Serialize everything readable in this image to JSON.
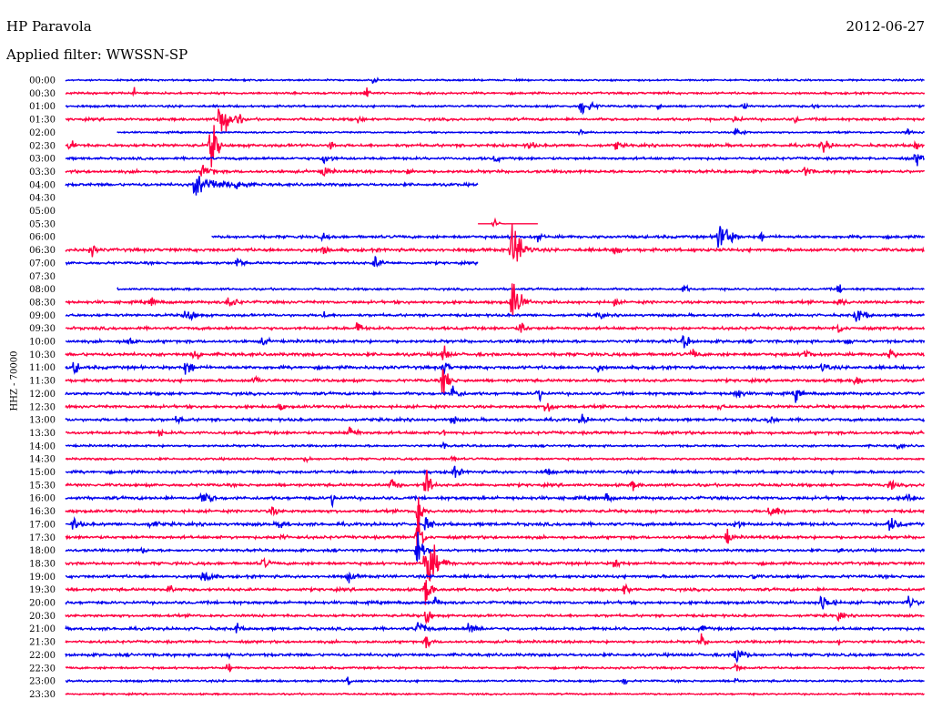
{
  "header": {
    "station": "HP Paravola",
    "date": "2012-06-27",
    "filter_label": "Applied filter: WWSSN-SP",
    "channel_label": "HHZ - 70000"
  },
  "colors": {
    "line_a": "#0000ee",
    "line_b": "#ff0040"
  },
  "chart_data": {
    "type": "line",
    "title": "HP Paravola",
    "subtitle": "Applied filter: WWSSN-SP",
    "ylabel": "HHZ - 70000",
    "legend": "none",
    "grid": false,
    "categories": [
      "00:00",
      "00:30",
      "01:00",
      "01:30",
      "02:00",
      "02:30",
      "03:00",
      "03:30",
      "04:00",
      "04:30",
      "05:00",
      "05:30",
      "06:00",
      "06:30",
      "07:00",
      "07:30",
      "08:00",
      "08:30",
      "09:00",
      "09:30",
      "10:00",
      "10:30",
      "11:00",
      "11:30",
      "12:00",
      "12:30",
      "13:00",
      "13:30",
      "14:00",
      "14:30",
      "15:00",
      "15:30",
      "16:00",
      "16:30",
      "17:00",
      "17:30",
      "18:00",
      "18:30",
      "19:00",
      "19:30",
      "20:00",
      "20:30",
      "21:00",
      "21:30",
      "22:00",
      "22:30",
      "23:00",
      "23:30"
    ],
    "row_colors": [
      "blue",
      "red"
    ],
    "rows": [
      {
        "time": "00:00",
        "noise": 1.2,
        "span": [
          0,
          1
        ],
        "events": [
          [
            0.36,
            10,
            2
          ]
        ]
      },
      {
        "time": "00:30",
        "noise": 1.5,
        "span": [
          0,
          1
        ],
        "events": [
          [
            0.08,
            8,
            4
          ],
          [
            0.35,
            10,
            6
          ],
          [
            0.7,
            5,
            3
          ]
        ]
      },
      {
        "time": "01:00",
        "noise": 1.5,
        "span": [
          0,
          1
        ],
        "events": [
          [
            0.6,
            14,
            12
          ],
          [
            0.69,
            7,
            4
          ],
          [
            0.79,
            8,
            4
          ],
          [
            0.87,
            8,
            4
          ]
        ]
      },
      {
        "time": "01:30",
        "noise": 1.8,
        "span": [
          0,
          1
        ],
        "events": [
          [
            0.18,
            45,
            8
          ],
          [
            0.2,
            14,
            5
          ],
          [
            0.34,
            8,
            6
          ],
          [
            0.78,
            10,
            6
          ],
          [
            0.85,
            8,
            4
          ]
        ]
      },
      {
        "time": "02:00",
        "noise": 1.2,
        "span": [
          0.06,
          1
        ],
        "events": [
          [
            0.6,
            6,
            4
          ],
          [
            0.78,
            8,
            10
          ],
          [
            0.98,
            8,
            4
          ]
        ]
      },
      {
        "time": "02:30",
        "noise": 2,
        "span": [
          0,
          1
        ],
        "events": [
          [
            0.005,
            14,
            6
          ],
          [
            0.17,
            55,
            5
          ],
          [
            0.31,
            14,
            3
          ],
          [
            0.54,
            10,
            6
          ],
          [
            0.64,
            10,
            6
          ],
          [
            0.88,
            12,
            10
          ],
          [
            0.99,
            12,
            4
          ]
        ]
      },
      {
        "time": "03:00",
        "noise": 1.8,
        "span": [
          0,
          1
        ],
        "events": [
          [
            0.3,
            10,
            10
          ],
          [
            0.5,
            8,
            6
          ],
          [
            0.99,
            14,
            6
          ]
        ]
      },
      {
        "time": "03:30",
        "noise": 2,
        "span": [
          0,
          1
        ],
        "events": [
          [
            0.16,
            14,
            10
          ],
          [
            0.3,
            12,
            8
          ],
          [
            0.4,
            8,
            6
          ],
          [
            0.86,
            10,
            8
          ]
        ]
      },
      {
        "time": "04:00",
        "noise": 2,
        "span": [
          0,
          0.48
        ],
        "events": [
          [
            0.15,
            18,
            30
          ],
          [
            0.2,
            14,
            10
          ]
        ]
      },
      {
        "time": "04:30",
        "noise": 0,
        "span": [
          0,
          0
        ],
        "events": []
      },
      {
        "time": "05:00",
        "noise": 0,
        "span": [
          0,
          0
        ],
        "events": []
      },
      {
        "time": "05:30",
        "noise": 0,
        "span": [
          0.48,
          0.55
        ],
        "events": [
          [
            0.5,
            10,
            3
          ]
        ]
      },
      {
        "time": "06:00",
        "noise": 2,
        "span": [
          0.17,
          1
        ],
        "events": [
          [
            0.3,
            8,
            6
          ],
          [
            0.55,
            10,
            6
          ],
          [
            0.76,
            35,
            10
          ],
          [
            0.81,
            10,
            4
          ]
        ]
      },
      {
        "time": "06:30",
        "noise": 2.2,
        "span": [
          0,
          1
        ],
        "events": [
          [
            0.03,
            12,
            6
          ],
          [
            0.3,
            10,
            8
          ],
          [
            0.52,
            45,
            10
          ],
          [
            0.64,
            10,
            8
          ]
        ]
      },
      {
        "time": "07:00",
        "noise": 1.8,
        "span": [
          0,
          0.48
        ],
        "events": [
          [
            0.2,
            10,
            6
          ],
          [
            0.36,
            10,
            10
          ]
        ]
      },
      {
        "time": "07:30",
        "noise": 0,
        "span": [
          0,
          0
        ],
        "events": []
      },
      {
        "time": "08:00",
        "noise": 1.5,
        "span": [
          0.06,
          1
        ],
        "events": [
          [
            0.72,
            10,
            4
          ],
          [
            0.9,
            10,
            4
          ]
        ]
      },
      {
        "time": "08:30",
        "noise": 2,
        "span": [
          0,
          1
        ],
        "events": [
          [
            0.1,
            10,
            6
          ],
          [
            0.19,
            12,
            10
          ],
          [
            0.52,
            40,
            8
          ],
          [
            0.64,
            8,
            4
          ],
          [
            0.9,
            10,
            8
          ]
        ]
      },
      {
        "time": "09:00",
        "noise": 1.8,
        "span": [
          0,
          1
        ],
        "events": [
          [
            0.14,
            14,
            10
          ],
          [
            0.3,
            8,
            6
          ],
          [
            0.62,
            10,
            6
          ],
          [
            0.92,
            14,
            10
          ]
        ]
      },
      {
        "time": "09:30",
        "noise": 2,
        "span": [
          0,
          1
        ],
        "events": [
          [
            0.34,
            12,
            6
          ],
          [
            0.53,
            14,
            6
          ],
          [
            0.9,
            10,
            6
          ]
        ]
      },
      {
        "time": "10:00",
        "noise": 2,
        "span": [
          0,
          1
        ],
        "events": [
          [
            0.07,
            10,
            10
          ],
          [
            0.23,
            10,
            6
          ],
          [
            0.72,
            14,
            6
          ],
          [
            0.91,
            8,
            8
          ]
        ]
      },
      {
        "time": "10:30",
        "noise": 2.2,
        "span": [
          0,
          1
        ],
        "events": [
          [
            0.15,
            12,
            8
          ],
          [
            0.44,
            20,
            5
          ],
          [
            0.73,
            12,
            6
          ],
          [
            0.86,
            12,
            8
          ],
          [
            0.96,
            12,
            6
          ]
        ]
      },
      {
        "time": "11:00",
        "noise": 2.2,
        "span": [
          0,
          1
        ],
        "events": [
          [
            0.01,
            14,
            6
          ],
          [
            0.14,
            14,
            10
          ],
          [
            0.44,
            14,
            6
          ],
          [
            0.62,
            10,
            6
          ],
          [
            0.88,
            10,
            8
          ]
        ]
      },
      {
        "time": "11:30",
        "noise": 2,
        "span": [
          0,
          1
        ],
        "events": [
          [
            0.22,
            10,
            8
          ],
          [
            0.44,
            28,
            6
          ],
          [
            0.92,
            12,
            6
          ]
        ]
      },
      {
        "time": "12:00",
        "noise": 2,
        "span": [
          0,
          1
        ],
        "events": [
          [
            0.45,
            16,
            8
          ],
          [
            0.55,
            14,
            6
          ],
          [
            0.78,
            12,
            8
          ],
          [
            0.85,
            14,
            6
          ]
        ]
      },
      {
        "time": "12:30",
        "noise": 2,
        "span": [
          0,
          1
        ],
        "events": [
          [
            0.25,
            8,
            6
          ],
          [
            0.56,
            14,
            8
          ],
          [
            0.76,
            8,
            6
          ]
        ]
      },
      {
        "time": "13:00",
        "noise": 2,
        "span": [
          0,
          1
        ],
        "events": [
          [
            0.13,
            8,
            8
          ],
          [
            0.45,
            10,
            6
          ],
          [
            0.6,
            10,
            8
          ],
          [
            0.82,
            12,
            6
          ]
        ]
      },
      {
        "time": "13:30",
        "noise": 2,
        "span": [
          0,
          1
        ],
        "events": [
          [
            0.11,
            8,
            4
          ],
          [
            0.33,
            12,
            10
          ],
          [
            0.44,
            8,
            4
          ]
        ]
      },
      {
        "time": "14:00",
        "noise": 1.5,
        "span": [
          0,
          1
        ],
        "events": [
          [
            0.44,
            8,
            4
          ],
          [
            0.97,
            8,
            4
          ]
        ]
      },
      {
        "time": "14:30",
        "noise": 1.5,
        "span": [
          0,
          1
        ],
        "events": [
          [
            0.28,
            8,
            4
          ],
          [
            0.45,
            8,
            4
          ]
        ]
      },
      {
        "time": "15:00",
        "noise": 2,
        "span": [
          0,
          1
        ],
        "events": [
          [
            0.45,
            12,
            10
          ],
          [
            0.56,
            8,
            6
          ]
        ]
      },
      {
        "time": "15:30",
        "noise": 2,
        "span": [
          0,
          1
        ],
        "events": [
          [
            0.38,
            14,
            6
          ],
          [
            0.42,
            40,
            4
          ],
          [
            0.66,
            10,
            6
          ],
          [
            0.96,
            10,
            6
          ]
        ]
      },
      {
        "time": "16:00",
        "noise": 2.2,
        "span": [
          0,
          1
        ],
        "events": [
          [
            0.16,
            14,
            10
          ],
          [
            0.31,
            12,
            6
          ],
          [
            0.63,
            10,
            6
          ],
          [
            0.98,
            12,
            6
          ]
        ]
      },
      {
        "time": "16:30",
        "noise": 2,
        "span": [
          0,
          1
        ],
        "events": [
          [
            0.24,
            10,
            8
          ],
          [
            0.41,
            45,
            4
          ],
          [
            0.82,
            12,
            14
          ]
        ]
      },
      {
        "time": "17:00",
        "noise": 2.2,
        "span": [
          0,
          1
        ],
        "events": [
          [
            0.01,
            12,
            8
          ],
          [
            0.1,
            10,
            8
          ],
          [
            0.25,
            10,
            8
          ],
          [
            0.42,
            16,
            6
          ],
          [
            0.78,
            12,
            6
          ],
          [
            0.96,
            14,
            10
          ]
        ]
      },
      {
        "time": "17:30",
        "noise": 2,
        "span": [
          0,
          1
        ],
        "events": [
          [
            0.25,
            10,
            6
          ],
          [
            0.41,
            50,
            4
          ],
          [
            0.77,
            14,
            6
          ]
        ]
      },
      {
        "time": "18:00",
        "noise": 1.8,
        "span": [
          0,
          1
        ],
        "events": [
          [
            0.09,
            8,
            4
          ],
          [
            0.41,
            35,
            6
          ],
          [
            0.9,
            8,
            4
          ]
        ]
      },
      {
        "time": "18:30",
        "noise": 2,
        "span": [
          0,
          1
        ],
        "events": [
          [
            0.23,
            10,
            8
          ],
          [
            0.42,
            55,
            10
          ],
          [
            0.64,
            12,
            6
          ]
        ]
      },
      {
        "time": "19:00",
        "noise": 2,
        "span": [
          0,
          1
        ],
        "events": [
          [
            0.16,
            14,
            10
          ],
          [
            0.33,
            10,
            8
          ],
          [
            0.8,
            8,
            4
          ]
        ]
      },
      {
        "time": "19:30",
        "noise": 2,
        "span": [
          0,
          1
        ],
        "events": [
          [
            0.12,
            10,
            6
          ],
          [
            0.42,
            30,
            5
          ],
          [
            0.65,
            10,
            10
          ]
        ]
      },
      {
        "time": "20:00",
        "noise": 2,
        "span": [
          0,
          1
        ],
        "events": [
          [
            0.43,
            10,
            6
          ],
          [
            0.88,
            18,
            10
          ],
          [
            0.98,
            14,
            8
          ]
        ]
      },
      {
        "time": "20:30",
        "noise": 1.8,
        "span": [
          0,
          1
        ],
        "events": [
          [
            0.42,
            20,
            4
          ],
          [
            0.9,
            10,
            6
          ]
        ]
      },
      {
        "time": "21:00",
        "noise": 2,
        "span": [
          0,
          1
        ],
        "events": [
          [
            0.2,
            12,
            4
          ],
          [
            0.41,
            14,
            10
          ],
          [
            0.47,
            12,
            10
          ],
          [
            0.74,
            10,
            6
          ]
        ]
      },
      {
        "time": "21:30",
        "noise": 1.8,
        "span": [
          0,
          1
        ],
        "events": [
          [
            0.42,
            12,
            6
          ],
          [
            0.74,
            12,
            6
          ],
          [
            0.9,
            8,
            4
          ]
        ]
      },
      {
        "time": "22:00",
        "noise": 2,
        "span": [
          0,
          1
        ],
        "events": [
          [
            0.19,
            8,
            4
          ],
          [
            0.78,
            16,
            10
          ]
        ]
      },
      {
        "time": "22:30",
        "noise": 1.5,
        "span": [
          0,
          1
        ],
        "events": [
          [
            0.19,
            10,
            4
          ],
          [
            0.78,
            10,
            6
          ]
        ]
      },
      {
        "time": "23:00",
        "noise": 1.5,
        "span": [
          0,
          1
        ],
        "events": [
          [
            0.33,
            10,
            4
          ],
          [
            0.65,
            8,
            4
          ],
          [
            0.78,
            8,
            4
          ]
        ]
      },
      {
        "time": "23:30",
        "noise": 1.2,
        "span": [
          0,
          1
        ],
        "events": []
      }
    ]
  }
}
